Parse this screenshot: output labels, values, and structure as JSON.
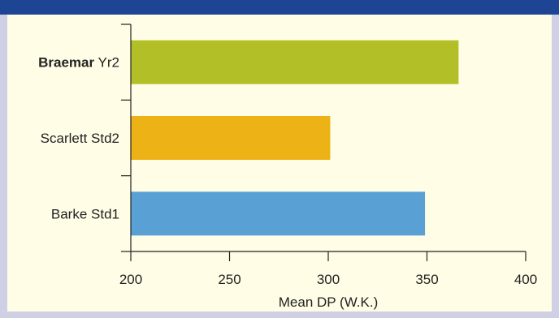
{
  "chart_data": {
    "type": "bar",
    "orientation": "horizontal",
    "categories": [
      {
        "bold": "Braemar",
        "rest": " Yr2",
        "color": "#b2bf27"
      },
      {
        "bold": "",
        "rest": "Scarlett Std2",
        "color": "#edb215"
      },
      {
        "bold": "",
        "rest": "Barke Std1",
        "color": "#59a1d4"
      }
    ],
    "values": [
      366,
      301,
      349
    ],
    "xlabel": "Mean DP (W.K.)",
    "ylabel": "",
    "title": "",
    "xlim": [
      200,
      400
    ],
    "xticks": [
      200,
      250,
      300,
      350,
      400
    ],
    "grid": false,
    "legend": "none"
  },
  "colors": {
    "background": "#fffde6",
    "top_bar": "#1d4594",
    "side_border": "#cfcfe6"
  }
}
